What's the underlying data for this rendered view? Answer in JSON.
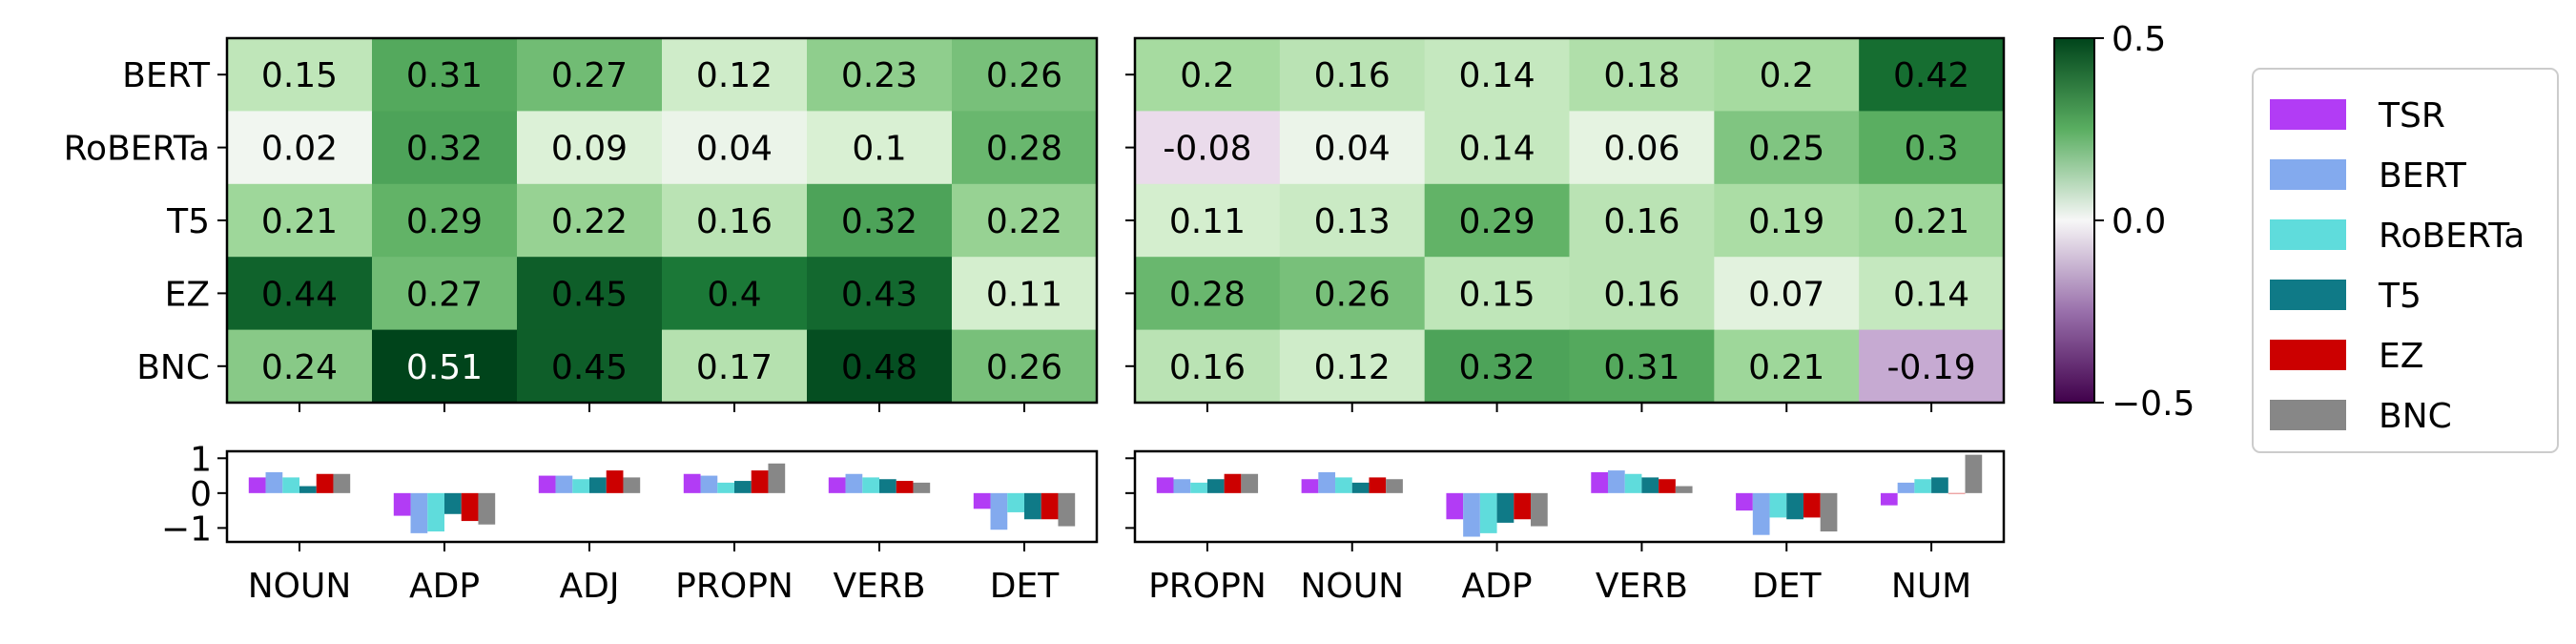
{
  "colors": {
    "TSR": "#b23cf5",
    "BERT": "#83aaee",
    "RoBERTa": "#5fdcdc",
    "T5": "#0f7a87",
    "EZ": "#cc0000",
    "BNC": "#878787"
  },
  "chart_data": [
    {
      "type": "heatmap",
      "rows": [
        "BERT",
        "RoBERTa",
        "T5",
        "EZ",
        "BNC"
      ],
      "columns": [
        "NOUN",
        "ADP",
        "ADJ",
        "PROPN",
        "VERB",
        "DET"
      ],
      "values": [
        [
          0.15,
          0.31,
          0.27,
          0.12,
          0.23,
          0.26
        ],
        [
          0.02,
          0.32,
          0.09,
          0.04,
          0.1,
          0.28
        ],
        [
          0.21,
          0.29,
          0.22,
          0.16,
          0.32,
          0.22
        ],
        [
          0.44,
          0.27,
          0.45,
          0.4,
          0.43,
          0.11
        ],
        [
          0.24,
          0.51,
          0.45,
          0.17,
          0.48,
          0.26
        ]
      ]
    },
    {
      "type": "heatmap",
      "rows": [
        "BERT",
        "RoBERTa",
        "T5",
        "EZ",
        "BNC"
      ],
      "columns": [
        "PROPN",
        "NOUN",
        "ADP",
        "VERB",
        "DET",
        "NUM"
      ],
      "values": [
        [
          0.2,
          0.16,
          0.14,
          0.18,
          0.2,
          0.42
        ],
        [
          -0.08,
          0.04,
          0.14,
          0.06,
          0.25,
          0.3
        ],
        [
          0.11,
          0.13,
          0.29,
          0.16,
          0.19,
          0.21
        ],
        [
          0.28,
          0.26,
          0.15,
          0.16,
          0.07,
          0.14
        ],
        [
          0.16,
          0.12,
          0.32,
          0.31,
          0.21,
          -0.19
        ]
      ]
    },
    {
      "type": "bar",
      "categories": [
        "NOUN",
        "ADP",
        "ADJ",
        "PROPN",
        "VERB",
        "DET"
      ],
      "ylim": [
        -1.4,
        1.2
      ],
      "yticks": [
        1,
        0,
        -1
      ],
      "ytick_labels": [
        "1",
        "0",
        "−1"
      ],
      "series": [
        {
          "name": "TSR",
          "values": [
            0.45,
            -0.65,
            0.5,
            0.55,
            0.45,
            -0.45
          ]
        },
        {
          "name": "BERT",
          "values": [
            0.6,
            -1.15,
            0.5,
            0.5,
            0.55,
            -1.05
          ]
        },
        {
          "name": "RoBERTa",
          "values": [
            0.45,
            -1.1,
            0.4,
            0.3,
            0.45,
            -0.55
          ]
        },
        {
          "name": "T5",
          "values": [
            0.2,
            -0.6,
            0.45,
            0.35,
            0.4,
            -0.75
          ]
        },
        {
          "name": "EZ",
          "values": [
            0.55,
            -0.8,
            0.65,
            0.65,
            0.35,
            -0.75
          ]
        },
        {
          "name": "BNC",
          "values": [
            0.55,
            -0.9,
            0.45,
            0.85,
            0.3,
            -0.95
          ]
        }
      ]
    },
    {
      "type": "bar",
      "categories": [
        "PROPN",
        "NOUN",
        "ADP",
        "VERB",
        "DET",
        "NUM"
      ],
      "ylim": [
        -1.4,
        1.2
      ],
      "series": [
        {
          "name": "TSR",
          "values": [
            0.45,
            0.4,
            -0.75,
            0.6,
            -0.5,
            -0.35
          ]
        },
        {
          "name": "BERT",
          "values": [
            0.4,
            0.6,
            -1.25,
            0.65,
            -1.2,
            0.3
          ]
        },
        {
          "name": "RoBERTa",
          "values": [
            0.3,
            0.45,
            -1.15,
            0.55,
            -0.7,
            0.4
          ]
        },
        {
          "name": "T5",
          "values": [
            0.4,
            0.3,
            -0.85,
            0.45,
            -0.75,
            0.45
          ]
        },
        {
          "name": "EZ",
          "values": [
            0.55,
            0.45,
            -0.75,
            0.4,
            -0.7,
            0.0
          ]
        },
        {
          "name": "BNC",
          "values": [
            0.55,
            0.4,
            -0.95,
            0.2,
            -1.1,
            1.1
          ]
        }
      ]
    }
  ],
  "colorbar": {
    "range": [
      -0.5,
      0.5
    ],
    "ticks": [
      0.5,
      0.0,
      -0.5
    ],
    "tick_labels": [
      "0.5",
      "0.0",
      "−0.5"
    ]
  },
  "legend": {
    "placement": "right",
    "entries": [
      "TSR",
      "BERT",
      "RoBERTa",
      "T5",
      "EZ",
      "BNC"
    ]
  }
}
